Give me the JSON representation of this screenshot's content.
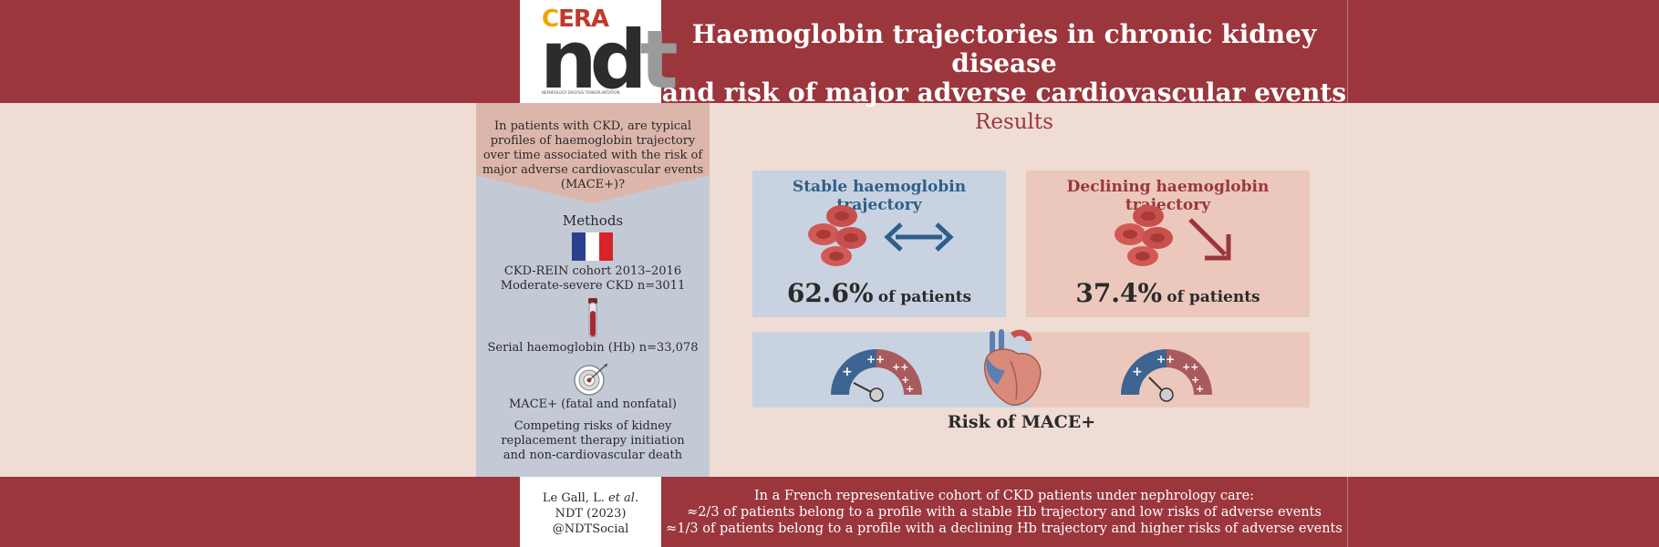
{
  "header": {
    "title_line1": "Haemoglobin trajectories in chronic kidney disease",
    "title_line2": "and risk of major adverse cardiovascular events",
    "logo": {
      "era": "ERA",
      "ndt": "ndt",
      "tagline": "NEPHROLOGY DIALYSIS TRANSPLANTATION"
    }
  },
  "question": {
    "text": "In patients with CKD, are typical profiles of haemoglobin trajectory over time associated with the risk of major adverse cardiovascular events (MACE+)?"
  },
  "methods": {
    "title": "Methods",
    "cohort_line1": "CKD-REIN cohort 2013–2016",
    "cohort_line2": "Moderate-severe CKD n=3011",
    "serial_hb": "Serial haemoglobin (Hb) n=33,078",
    "mace": "MACE+ (fatal and nonfatal)",
    "competing_line1": "Competing risks of kidney",
    "competing_line2": "replacement therapy initiation",
    "competing_line3": "and non-cardiovascular death"
  },
  "results": {
    "title": "Results",
    "stable": {
      "title": "Stable haemoglobin trajectory",
      "percent": "62.6%",
      "suffix": "of patients"
    },
    "declining": {
      "title": "Declining haemoglobin trajectory",
      "percent": "37.4%",
      "suffix": "of patients"
    },
    "risk_label": "Risk of MACE+"
  },
  "footer": {
    "citation_line1": "Le Gall, L.",
    "citation_etal": "et al.",
    "citation_line2": "NDT (2023)",
    "citation_line3": "@NDTSocial",
    "conclusion_line1": "In a French representative cohort of CKD patients under nephrology care:",
    "conclusion_line2": "≈2/3 of patients belong to a profile with a stable Hb trajectory and low risks of adverse events",
    "conclusion_line3": "≈1/3 of patients belong to a profile with a declining Hb trajectory and higher risks of adverse events"
  },
  "colors": {
    "brand_red": "#9b363c",
    "stable_blue": "#2e5f8a",
    "panel_blue": "#c9d2e0",
    "panel_pink": "#ebc8bb"
  },
  "icons": [
    "france-flag-icon",
    "blood-tube-icon",
    "target-icon",
    "red-blood-cells-icon",
    "bidirectional-arrow-icon",
    "down-arrow-icon",
    "risk-gauge-icon",
    "heart-icon"
  ]
}
